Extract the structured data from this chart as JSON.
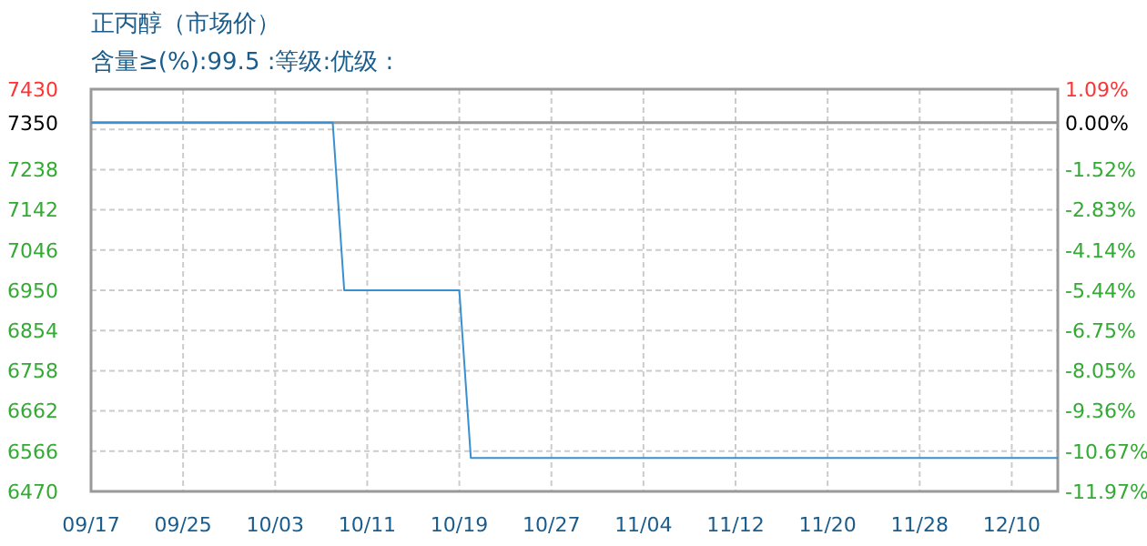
{
  "chart_data": {
    "type": "line",
    "title": "正丙醇（市场价）",
    "subtitle": "含量≥(%):99.5 :等级:优级 :",
    "categories": [
      "09/17",
      null,
      null,
      null,
      null,
      null,
      null,
      null,
      "09/25",
      null,
      null,
      null,
      null,
      null,
      null,
      null,
      "10/03",
      null,
      null,
      null,
      null,
      null,
      null,
      null,
      "10/11",
      null,
      null,
      null,
      null,
      null,
      null,
      null,
      "10/19",
      null,
      null,
      null,
      null,
      null,
      null,
      null,
      "10/27",
      null,
      null,
      null,
      null,
      null,
      null,
      null,
      "11/04",
      null,
      null,
      null,
      null,
      null,
      null,
      null,
      "11/12",
      null,
      null,
      null,
      null,
      null,
      null,
      null,
      "11/20",
      null,
      null,
      null,
      null,
      null,
      null,
      null,
      "11/28",
      null,
      null,
      null,
      null,
      null,
      null,
      null,
      "12/10",
      null,
      null,
      null,
      null
    ],
    "ylim": [
      6470,
      7430
    ],
    "yticks": [
      6470,
      6566,
      6662,
      6758,
      6854,
      6950,
      7046,
      7142,
      7238,
      {
        "value": 7334,
        "label": null
      },
      7350,
      7430
    ],
    "y2lim": [
      -11.97,
      1.09
    ],
    "y2ticks": [
      {
        "value": -11.97,
        "label": "-11.97%"
      },
      {
        "value": -10.67,
        "label": "-10.67%"
      },
      {
        "value": -9.36,
        "label": "-9.36%"
      },
      {
        "value": -8.05,
        "label": "-8.05%"
      },
      {
        "value": -6.75,
        "label": "-6.75%"
      },
      {
        "value": -5.44,
        "label": "-5.44%"
      },
      {
        "value": -4.14,
        "label": "-4.14%"
      },
      {
        "value": -2.83,
        "label": "-2.83%"
      },
      {
        "value": -1.52,
        "label": "-1.52%"
      },
      {
        "value": 0,
        "label": "0.00%"
      },
      {
        "value": 1.09,
        "label": "1.09%"
      }
    ],
    "grid": true,
    "ref_lines": [
      {
        "axis": "y",
        "value": 7350,
        "color": "#999999"
      }
    ],
    "series": [
      {
        "color": "#3a8fd0",
        "values": [
          7350,
          7350,
          7350,
          7350,
          7350,
          7350,
          7350,
          7350,
          7350,
          7350,
          7350,
          7350,
          7350,
          7350,
          7350,
          7350,
          7350,
          7350,
          7350,
          7350,
          7350,
          7350,
          6950,
          6950,
          6950,
          6950,
          6950,
          6950,
          6950,
          6950,
          6950,
          6950,
          6950,
          6550,
          6550,
          6550,
          6550,
          6550,
          6550,
          6550,
          6550,
          6550,
          6550,
          6550,
          6550,
          6550,
          6550,
          6550,
          6550,
          6550,
          6550,
          6550,
          6550,
          6550,
          6550,
          6550,
          6550,
          6550,
          6550,
          6550,
          6550,
          6550,
          6550,
          6550,
          6550,
          6550,
          6550,
          6550,
          6550,
          6550,
          6550,
          6550,
          6550,
          6550,
          6550,
          6550,
          6550,
          6550,
          6550,
          6550,
          6550,
          6550,
          6550,
          6550,
          6550
        ]
      }
    ]
  }
}
